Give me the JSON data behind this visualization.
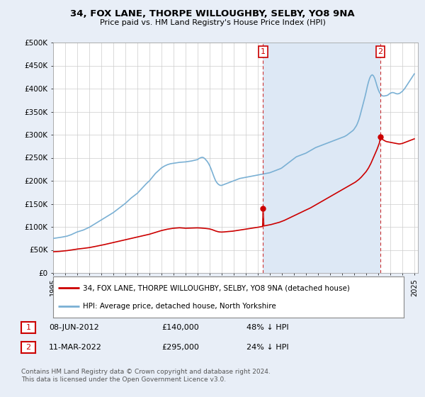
{
  "title": "34, FOX LANE, THORPE WILLOUGHBY, SELBY, YO8 9NA",
  "subtitle": "Price paid vs. HM Land Registry's House Price Index (HPI)",
  "legend_line1": "34, FOX LANE, THORPE WILLOUGHBY, SELBY, YO8 9NA (detached house)",
  "legend_line2": "HPI: Average price, detached house, North Yorkshire",
  "footnote": "Contains HM Land Registry data © Crown copyright and database right 2024.\nThis data is licensed under the Open Government Licence v3.0.",
  "price_color": "#cc0000",
  "hpi_color": "#7ab0d4",
  "background_color": "#e8eef7",
  "plot_bg_color": "#ffffff",
  "shade_color": "#dde8f5",
  "vline_color": "#cc0000",
  "ylim": [
    0,
    500000
  ],
  "yticks": [
    0,
    50000,
    100000,
    150000,
    200000,
    250000,
    300000,
    350000,
    400000,
    450000,
    500000
  ],
  "ytick_labels": [
    "£0",
    "£50K",
    "£100K",
    "£150K",
    "£200K",
    "£250K",
    "£300K",
    "£350K",
    "£400K",
    "£450K",
    "£500K"
  ],
  "sale1_year": 2012.44,
  "sale1_price": 140000,
  "sale2_year": 2022.19,
  "sale2_price": 295000,
  "annotation1_date": "08-JUN-2012",
  "annotation1_price": "£140,000",
  "annotation1_hpi": "48% ↓ HPI",
  "annotation2_date": "11-MAR-2022",
  "annotation2_price": "£295,000",
  "annotation2_hpi": "24% ↓ HPI",
  "hpi_x": [
    1995.0,
    1995.08,
    1995.17,
    1995.25,
    1995.33,
    1995.42,
    1995.5,
    1995.58,
    1995.67,
    1995.75,
    1995.83,
    1995.92,
    1996.0,
    1996.08,
    1996.17,
    1996.25,
    1996.33,
    1996.42,
    1996.5,
    1996.58,
    1996.67,
    1996.75,
    1996.83,
    1996.92,
    1997.0,
    1997.25,
    1997.5,
    1997.75,
    1998.0,
    1998.25,
    1998.5,
    1998.75,
    1999.0,
    1999.25,
    1999.5,
    1999.75,
    2000.0,
    2000.25,
    2000.5,
    2000.75,
    2001.0,
    2001.25,
    2001.5,
    2001.75,
    2002.0,
    2002.25,
    2002.5,
    2002.75,
    2003.0,
    2003.25,
    2003.5,
    2003.75,
    2004.0,
    2004.25,
    2004.5,
    2004.75,
    2005.0,
    2005.25,
    2005.5,
    2005.75,
    2006.0,
    2006.25,
    2006.5,
    2006.75,
    2007.0,
    2007.1,
    2007.2,
    2007.3,
    2007.4,
    2007.5,
    2007.6,
    2007.7,
    2007.8,
    2007.9,
    2008.0,
    2008.1,
    2008.2,
    2008.3,
    2008.4,
    2008.5,
    2008.6,
    2008.7,
    2008.8,
    2008.9,
    2009.0,
    2009.1,
    2009.2,
    2009.3,
    2009.4,
    2009.5,
    2009.6,
    2009.7,
    2009.8,
    2009.9,
    2010.0,
    2010.1,
    2010.2,
    2010.3,
    2010.4,
    2010.5,
    2010.6,
    2010.7,
    2010.8,
    2010.9,
    2011.0,
    2011.1,
    2011.2,
    2011.3,
    2011.4,
    2011.5,
    2011.6,
    2011.7,
    2011.8,
    2011.9,
    2012.0,
    2012.1,
    2012.2,
    2012.3,
    2012.4,
    2012.5,
    2012.6,
    2012.7,
    2012.8,
    2012.9,
    2013.0,
    2013.1,
    2013.2,
    2013.3,
    2013.4,
    2013.5,
    2013.6,
    2013.7,
    2013.8,
    2013.9,
    2014.0,
    2014.1,
    2014.2,
    2014.3,
    2014.4,
    2014.5,
    2014.6,
    2014.7,
    2014.8,
    2014.9,
    2015.0,
    2015.1,
    2015.2,
    2015.3,
    2015.4,
    2015.5,
    2015.6,
    2015.7,
    2015.8,
    2015.9,
    2016.0,
    2016.1,
    2016.2,
    2016.3,
    2016.4,
    2016.5,
    2016.6,
    2016.7,
    2016.8,
    2016.9,
    2017.0,
    2017.1,
    2017.2,
    2017.3,
    2017.4,
    2017.5,
    2017.6,
    2017.7,
    2017.8,
    2017.9,
    2018.0,
    2018.1,
    2018.2,
    2018.3,
    2018.4,
    2018.5,
    2018.6,
    2018.7,
    2018.8,
    2018.9,
    2019.0,
    2019.1,
    2019.2,
    2019.3,
    2019.4,
    2019.5,
    2019.6,
    2019.7,
    2019.8,
    2019.9,
    2020.0,
    2020.1,
    2020.2,
    2020.3,
    2020.4,
    2020.5,
    2020.6,
    2020.7,
    2020.8,
    2020.9,
    2021.0,
    2021.1,
    2021.2,
    2021.3,
    2021.4,
    2021.5,
    2021.6,
    2021.7,
    2021.8,
    2021.9,
    2022.0,
    2022.1,
    2022.2,
    2022.3,
    2022.4,
    2022.5,
    2022.6,
    2022.7,
    2022.8,
    2022.9,
    2023.0,
    2023.1,
    2023.2,
    2023.3,
    2023.4,
    2023.5,
    2023.6,
    2023.7,
    2023.8,
    2023.9,
    2024.0,
    2024.1,
    2024.2,
    2024.3,
    2024.4,
    2024.5,
    2024.6,
    2024.7,
    2024.8,
    2024.9,
    2025.0
  ],
  "hpi_y": [
    75000,
    75200,
    75500,
    75800,
    76000,
    76300,
    76600,
    77000,
    77400,
    77800,
    78200,
    78600,
    79000,
    79500,
    80000,
    80800,
    81500,
    82300,
    83000,
    84000,
    85000,
    86000,
    87000,
    88000,
    89000,
    91000,
    93000,
    96000,
    99000,
    103000,
    107000,
    111000,
    115000,
    119000,
    123000,
    127000,
    131000,
    136000,
    141000,
    146000,
    151000,
    157000,
    163000,
    168000,
    173000,
    180000,
    187000,
    194000,
    200000,
    208000,
    216000,
    222000,
    228000,
    232000,
    235000,
    237000,
    238000,
    239000,
    240000,
    240500,
    241000,
    242000,
    243000,
    244500,
    246000,
    248000,
    249500,
    250500,
    251000,
    250000,
    248000,
    245000,
    242000,
    238000,
    233000,
    227000,
    220000,
    213000,
    206000,
    200000,
    196000,
    193000,
    191000,
    190000,
    190000,
    191000,
    192000,
    193000,
    194000,
    195000,
    196000,
    197000,
    198000,
    199000,
    200000,
    201000,
    202000,
    203000,
    204000,
    205000,
    205500,
    206000,
    206500,
    207000,
    207500,
    208000,
    208500,
    209000,
    209500,
    210000,
    210500,
    211000,
    211500,
    212000,
    212500,
    213000,
    213500,
    214000,
    214500,
    215000,
    215500,
    216000,
    216500,
    217000,
    217500,
    218500,
    219500,
    220500,
    221500,
    222500,
    223500,
    224500,
    225500,
    226500,
    228000,
    230000,
    232000,
    234000,
    236000,
    238000,
    240000,
    242000,
    244000,
    246000,
    248000,
    250000,
    252000,
    253000,
    254000,
    255000,
    256000,
    257000,
    258000,
    259000,
    260000,
    261500,
    263000,
    264500,
    266000,
    267500,
    269000,
    270500,
    272000,
    273000,
    274000,
    275000,
    276000,
    277000,
    278000,
    279000,
    280000,
    281000,
    282000,
    283000,
    284000,
    285000,
    286000,
    287000,
    288000,
    289000,
    290000,
    291000,
    292000,
    293000,
    294000,
    295000,
    296000,
    297500,
    299000,
    301000,
    303000,
    305000,
    307000,
    309000,
    312000,
    316000,
    320000,
    326000,
    333000,
    342000,
    352000,
    362000,
    372000,
    382000,
    393000,
    405000,
    415000,
    423000,
    428000,
    430000,
    428000,
    423000,
    415000,
    406000,
    398000,
    392000,
    388000,
    385000,
    384000,
    384000,
    384500,
    385000,
    386000,
    388000,
    390000,
    391000,
    391500,
    391000,
    390000,
    389000,
    388500,
    389000,
    390000,
    392000,
    394000,
    397000,
    400000,
    404000,
    408000,
    412000,
    416000,
    420000,
    424000,
    428000,
    432000
  ],
  "price_x": [
    1995.0,
    1995.08,
    1995.17,
    1995.25,
    1995.33,
    1995.42,
    1995.5,
    1995.58,
    1995.67,
    1995.75,
    1995.83,
    1995.92,
    1996.0,
    1996.08,
    1996.17,
    1996.25,
    1996.33,
    1996.42,
    1996.5,
    1996.58,
    1996.67,
    1996.75,
    1996.83,
    1996.92,
    1997.0,
    1997.25,
    1997.5,
    1997.75,
    1998.0,
    1998.25,
    1998.5,
    1998.75,
    1999.0,
    1999.25,
    1999.5,
    1999.75,
    2000.0,
    2000.25,
    2000.5,
    2000.75,
    2001.0,
    2001.25,
    2001.5,
    2001.75,
    2002.0,
    2002.25,
    2002.5,
    2002.75,
    2003.0,
    2003.25,
    2003.5,
    2003.75,
    2004.0,
    2004.25,
    2004.5,
    2004.75,
    2005.0,
    2005.25,
    2005.5,
    2005.75,
    2006.0,
    2006.25,
    2006.5,
    2006.75,
    2007.0,
    2007.1,
    2007.2,
    2007.3,
    2007.4,
    2007.5,
    2007.6,
    2007.7,
    2007.8,
    2007.9,
    2008.0,
    2008.1,
    2008.2,
    2008.3,
    2008.4,
    2008.5,
    2008.6,
    2008.7,
    2008.8,
    2008.9,
    2009.0,
    2009.1,
    2009.2,
    2009.3,
    2009.4,
    2009.5,
    2009.6,
    2009.7,
    2009.8,
    2009.9,
    2010.0,
    2010.1,
    2010.2,
    2010.3,
    2010.4,
    2010.5,
    2010.6,
    2010.7,
    2010.8,
    2010.9,
    2011.0,
    2011.1,
    2011.2,
    2011.3,
    2011.4,
    2011.5,
    2011.6,
    2011.7,
    2011.8,
    2011.9,
    2012.0,
    2012.1,
    2012.2,
    2012.3,
    2012.4,
    2012.44,
    2012.5,
    2012.6,
    2012.7,
    2012.8,
    2012.9,
    2013.0,
    2013.1,
    2013.2,
    2013.3,
    2013.4,
    2013.5,
    2013.6,
    2013.7,
    2013.8,
    2013.9,
    2014.0,
    2014.1,
    2014.2,
    2014.3,
    2014.4,
    2014.5,
    2014.6,
    2014.7,
    2014.8,
    2014.9,
    2015.0,
    2015.1,
    2015.2,
    2015.3,
    2015.4,
    2015.5,
    2015.6,
    2015.7,
    2015.8,
    2015.9,
    2016.0,
    2016.1,
    2016.2,
    2016.3,
    2016.4,
    2016.5,
    2016.6,
    2016.7,
    2016.8,
    2016.9,
    2017.0,
    2017.1,
    2017.2,
    2017.3,
    2017.4,
    2017.5,
    2017.6,
    2017.7,
    2017.8,
    2017.9,
    2018.0,
    2018.1,
    2018.2,
    2018.3,
    2018.4,
    2018.5,
    2018.6,
    2018.7,
    2018.8,
    2018.9,
    2019.0,
    2019.1,
    2019.2,
    2019.3,
    2019.4,
    2019.5,
    2019.6,
    2019.7,
    2019.8,
    2019.9,
    2020.0,
    2020.1,
    2020.2,
    2020.3,
    2020.4,
    2020.5,
    2020.6,
    2020.7,
    2020.8,
    2020.9,
    2021.0,
    2021.1,
    2021.2,
    2021.3,
    2021.4,
    2021.5,
    2021.6,
    2021.7,
    2021.8,
    2021.9,
    2022.0,
    2022.1,
    2022.19,
    2022.3,
    2022.4,
    2022.5,
    2022.6,
    2022.7,
    2022.8,
    2022.9,
    2023.0,
    2023.1,
    2023.2,
    2023.3,
    2023.4,
    2023.5,
    2023.6,
    2023.7,
    2023.8,
    2023.9,
    2024.0,
    2024.1,
    2024.2,
    2024.3,
    2024.4,
    2024.5,
    2024.6,
    2024.7,
    2024.8,
    2024.9,
    2025.0
  ],
  "price_y": [
    46000,
    46100,
    46200,
    46300,
    46400,
    46500,
    46700,
    46900,
    47100,
    47300,
    47500,
    47700,
    48000,
    48200,
    48500,
    48800,
    49100,
    49400,
    49700,
    50000,
    50300,
    50600,
    51000,
    51400,
    51800,
    52500,
    53300,
    54100,
    55000,
    56200,
    57500,
    58800,
    60000,
    61500,
    63000,
    64500,
    66000,
    67500,
    69000,
    70500,
    72000,
    73500,
    75000,
    76500,
    78000,
    79500,
    81000,
    82500,
    84000,
    86000,
    88000,
    90000,
    92000,
    93500,
    95000,
    96000,
    97000,
    97500,
    98000,
    97500,
    97000,
    97200,
    97400,
    97600,
    97800,
    97700,
    97600,
    97400,
    97200,
    97000,
    96800,
    96500,
    96200,
    95900,
    95500,
    94800,
    94000,
    93000,
    92000,
    91000,
    90200,
    89500,
    89000,
    88800,
    88700,
    88800,
    89000,
    89200,
    89500,
    89800,
    90000,
    90200,
    90400,
    90600,
    91000,
    91400,
    91800,
    92200,
    92600,
    93000,
    93400,
    93800,
    94200,
    94600,
    95000,
    95400,
    95800,
    96200,
    96600,
    97000,
    97400,
    97800,
    98200,
    98600,
    99000,
    99500,
    100000,
    100500,
    101000,
    140000,
    102000,
    102500,
    103000,
    103500,
    104000,
    104500,
    105000,
    105700,
    106400,
    107100,
    107800,
    108500,
    109200,
    110000,
    111000,
    112000,
    113000,
    114000,
    115200,
    116500,
    117800,
    119000,
    120200,
    121500,
    122800,
    124000,
    125200,
    126500,
    127800,
    129000,
    130200,
    131500,
    132800,
    134000,
    135300,
    136500,
    137800,
    139000,
    140200,
    141500,
    143000,
    144500,
    146000,
    147500,
    149000,
    150500,
    152000,
    153500,
    155000,
    156500,
    158000,
    159500,
    161000,
    162500,
    164000,
    165500,
    167000,
    168500,
    170000,
    171500,
    173000,
    174500,
    176000,
    177500,
    179000,
    180500,
    182000,
    183500,
    185000,
    186500,
    188000,
    189500,
    191000,
    192500,
    194000,
    195500,
    197000,
    199000,
    201000,
    203000,
    205500,
    208000,
    211000,
    214000,
    217000,
    220000,
    224000,
    228000,
    233000,
    238000,
    244000,
    250000,
    256000,
    262000,
    268000,
    275000,
    282000,
    295000,
    291000,
    289000,
    287500,
    286000,
    285000,
    284500,
    284000,
    283500,
    283000,
    282500,
    282000,
    281500,
    281000,
    280500,
    280000,
    280000,
    280500,
    281000,
    282000,
    283000,
    284000,
    285000,
    286000,
    287000,
    288000,
    289000,
    290000,
    291000
  ]
}
